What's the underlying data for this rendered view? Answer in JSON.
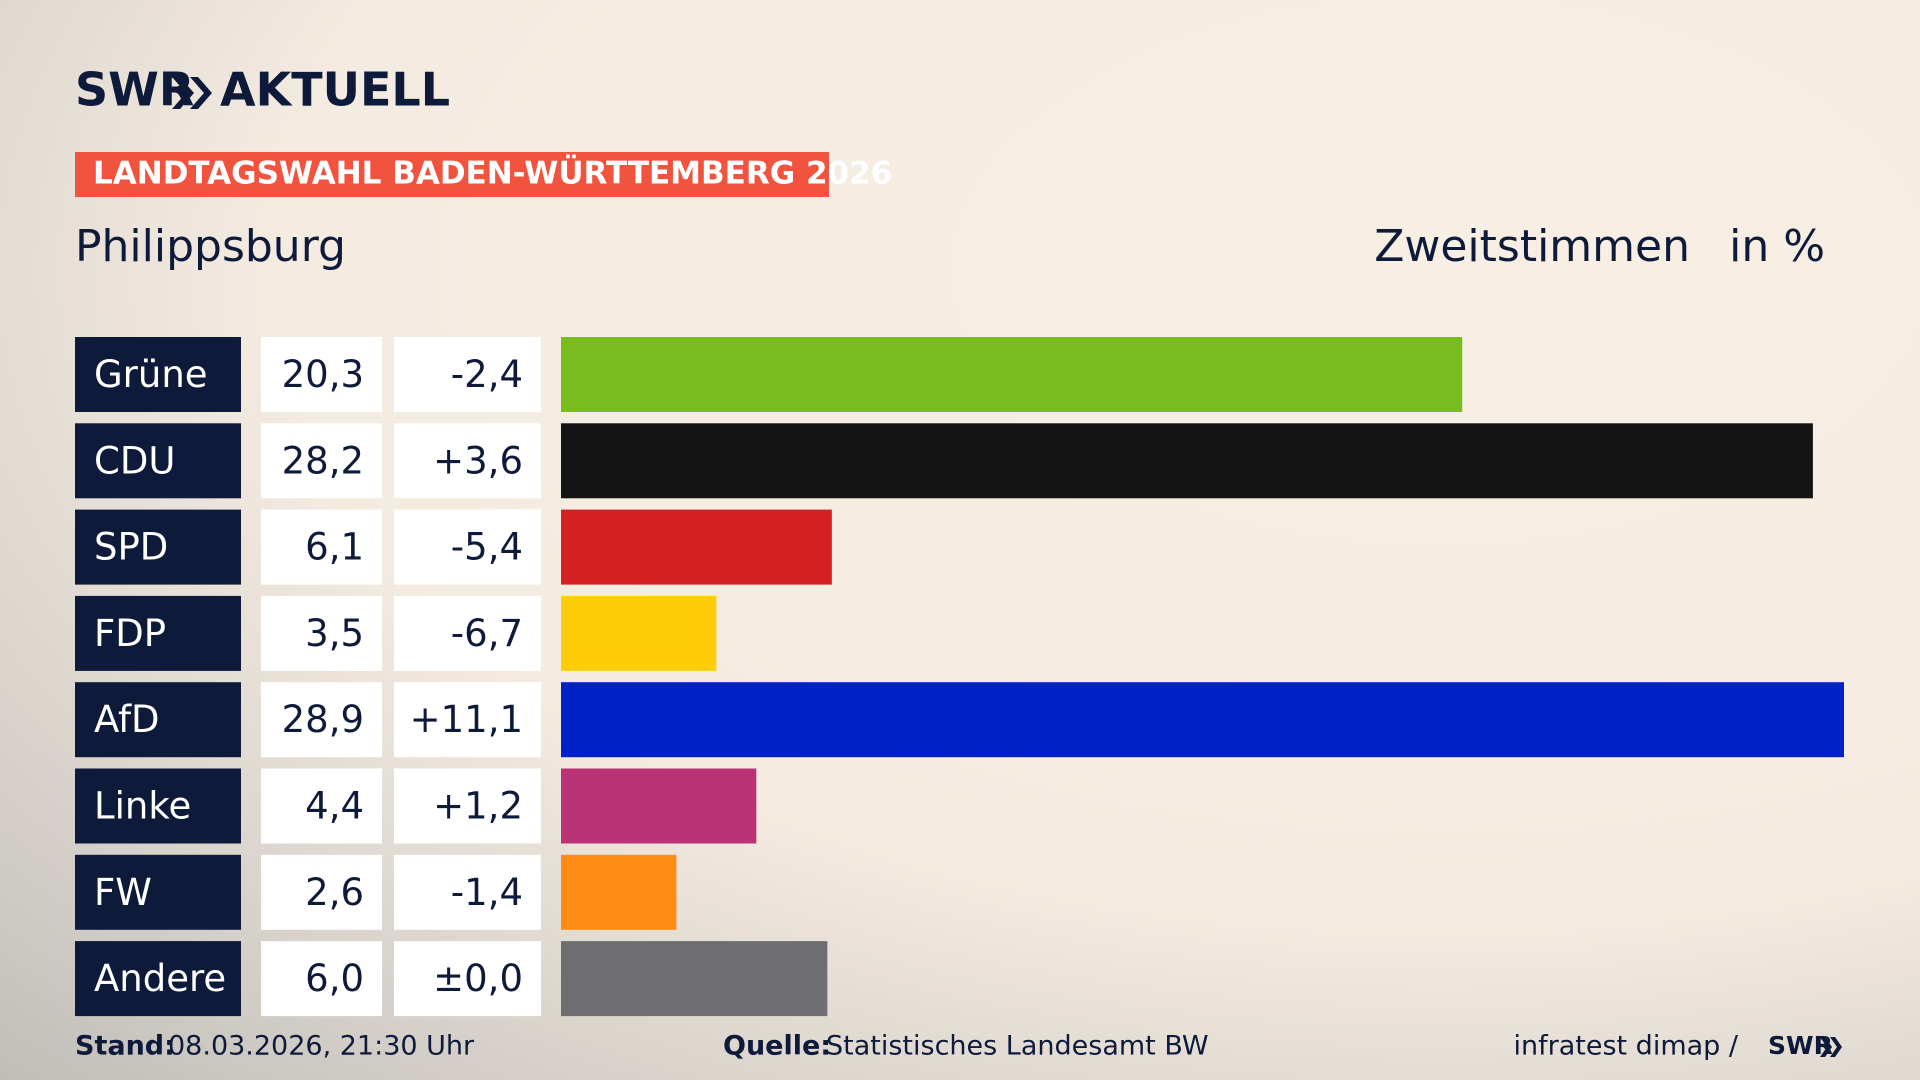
{
  "header": {
    "brand": "SWR",
    "brand_suffix": "AKTUELL",
    "badge": "LANDTAGSWAHL BADEN-WÜRTTEMBERG 2026"
  },
  "chart_data": {
    "type": "bar",
    "title": "Philippsburg",
    "measure": "Zweitstimmen",
    "unit": "in %",
    "categories": [
      "Grüne",
      "CDU",
      "SPD",
      "FDP",
      "AfD",
      "Linke",
      "FW",
      "Andere"
    ],
    "values": [
      20.3,
      28.2,
      6.1,
      3.5,
      28.9,
      4.4,
      2.6,
      6.0
    ],
    "value_labels": [
      "20,3",
      "28,2",
      "6,1",
      "3,5",
      "28,9",
      "4,4",
      "2,6",
      "6,0"
    ],
    "colors": [
      "#78bc1e",
      "#141414",
      "#d42020",
      "#ffcc0a",
      "#0020c8",
      "#bb3377",
      "#ff8c14",
      "#6e6e70"
    ],
    "changes": {
      "values": [
        -2.4,
        3.6,
        -5.4,
        -6.7,
        11.1,
        1.2,
        -1.4,
        0.0
      ],
      "value_labels": [
        "-2,4",
        "+3,6",
        "-5,4",
        "-6,7",
        "+11,1",
        "+1,2",
        "-1,4",
        "±0,0"
      ]
    }
  },
  "footer": {
    "stand_label": "Stand:",
    "stand": "08.03.2026, 21:30 Uhr",
    "source_label": "Quelle:",
    "source": "Statistisches Landesamt BW",
    "credit": "infratest dimap /",
    "credit_brand": "SWR"
  }
}
